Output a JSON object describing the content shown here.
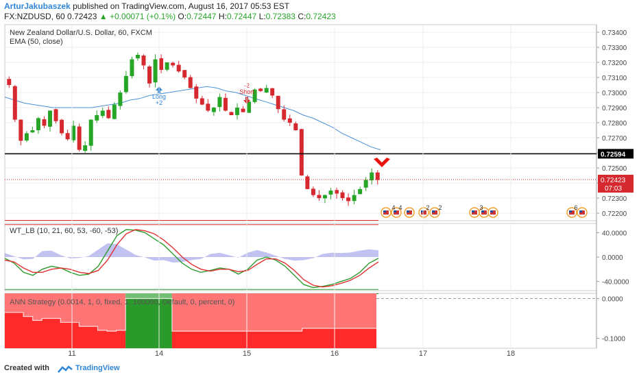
{
  "header": {
    "author": "ArturJakubaszek",
    "published_text": "published on TradingView.com, August 16, 2017 05:53 EST",
    "symbol": "FX:NZDUSD, 60",
    "last": "0.72423",
    "change": "+0.00071 (+0.1%)",
    "o_label": "O:",
    "o_value": "0.72447",
    "h_label": "H:",
    "h_value": "0.72447",
    "l_label": "L:",
    "l_value": "0.72383",
    "c_label": "C:",
    "c_value": "0.72423"
  },
  "main_pane": {
    "title": "New Zealand Dollar/U.S. Dollar, 60, FXCM",
    "indicator": "EMA (50, close)",
    "price_ticks": [
      "0.73400",
      "0.73300",
      "0.73200",
      "0.73100",
      "0.73000",
      "0.72900",
      "0.72800",
      "0.72700",
      "0.72600",
      "0.72500",
      "0.72400",
      "0.72300",
      "0.72200"
    ],
    "hline_label": "0.72594",
    "last_label": "0.72423",
    "timer_label": "07:03",
    "long_label": "Long",
    "long_qty": "+2",
    "short_label": "Short",
    "short_qty": "-2",
    "event_labels": [
      "4",
      "4",
      "2",
      "2",
      "3",
      "6"
    ]
  },
  "wt_pane": {
    "title": "WT_LB (10, 21, 60, 53, -60, -53)",
    "ticks": [
      "40.0000",
      "0.0000",
      "-40.0000"
    ]
  },
  "ann_pane": {
    "title": "ANN Strategy (0.0014, 1, 0, fixed, 1, 100000, Default, 0, percent, 0)",
    "ticks": [
      "0.0000",
      "-0.1000"
    ]
  },
  "time_axis": {
    "labels": [
      "11",
      "14",
      "15",
      "16",
      "17",
      "18"
    ]
  },
  "footer": {
    "created_with": "Created with",
    "brand": "TradingView"
  },
  "colors": {
    "up": "#27a527",
    "down": "#d6292f",
    "ema": "#4a90d9",
    "wt_green": "#2e9b2e",
    "wt_red": "#e03030",
    "hist": "#9a9ae8",
    "ann_red": "#ff2a2a",
    "ann_green": "#2a9b2a"
  },
  "chart_data": [
    {
      "type": "candlestick",
      "title": "New Zealand Dollar/U.S. Dollar, 60, FXCM",
      "x": [
        "11",
        "14",
        "15",
        "16",
        "17",
        "18"
      ],
      "ylim": [
        0.7215,
        0.7345
      ],
      "horizontal_line": 0.72594,
      "last_price": 0.72423,
      "close_path": [
        0.7305,
        0.7282,
        0.7268,
        0.7273,
        0.7275,
        0.7283,
        0.7278,
        0.7288,
        0.7281,
        0.7273,
        0.7269,
        0.7278,
        0.7262,
        0.7265,
        0.7282,
        0.7285,
        0.7288,
        0.7283,
        0.7292,
        0.73,
        0.7311,
        0.7322,
        0.7325,
        0.7318,
        0.7306,
        0.7322,
        0.7315,
        0.732,
        0.7318,
        0.7314,
        0.731,
        0.7303,
        0.7296,
        0.7292,
        0.7288,
        0.729,
        0.7297,
        0.7288,
        0.7285,
        0.729,
        0.7287,
        0.7294,
        0.7302,
        0.7301,
        0.7303,
        0.7298,
        0.7289,
        0.7282,
        0.728,
        0.7275,
        0.7245,
        0.7236,
        0.7232,
        0.723,
        0.7232,
        0.7235,
        0.7233,
        0.723,
        0.7228,
        0.7232,
        0.7236,
        0.7242,
        0.7247,
        0.7242
      ],
      "ema": [
        0.7297,
        0.7295,
        0.7293,
        0.7292,
        0.7291,
        0.729,
        0.729,
        0.729,
        0.729,
        0.729,
        0.7291,
        0.7292,
        0.7293,
        0.7295,
        0.7296,
        0.7298,
        0.7299,
        0.73,
        0.7301,
        0.7302,
        0.7303,
        0.7304,
        0.7303,
        0.7301,
        0.73,
        0.7298,
        0.7296,
        0.7294,
        0.7292,
        0.729,
        0.7288,
        0.7285,
        0.7283,
        0.728,
        0.7277,
        0.7273,
        0.727,
        0.7267,
        0.7264,
        0.7262
      ]
    },
    {
      "type": "line",
      "title": "WT_LB (10, 21, 60, 53, -60, -53)",
      "ylim": [
        -55,
        55
      ],
      "levels": [
        53,
        60,
        -53,
        -60
      ],
      "series": [
        {
          "values": [
            -2,
            -10,
            -25,
            -30,
            -20,
            -15,
            -18,
            -25,
            -30,
            -28,
            -15,
            10,
            35,
            45,
            44,
            40,
            30,
            20,
            5,
            -10,
            -20,
            -25,
            -22,
            -18,
            -20,
            -28,
            -20,
            -5,
            0,
            -5,
            -15,
            -30,
            -45,
            -50,
            -48,
            -45,
            -40,
            -35,
            -25,
            -10,
            -2
          ]
        },
        {
          "values": [
            -5,
            -8,
            -18,
            -25,
            -25,
            -20,
            -18,
            -20,
            -25,
            -27,
            -22,
            -5,
            20,
            38,
            45,
            43,
            38,
            28,
            15,
            0,
            -12,
            -20,
            -23,
            -20,
            -20,
            -24,
            -22,
            -12,
            -3,
            -3,
            -10,
            -22,
            -37,
            -46,
            -49,
            -47,
            -43,
            -38,
            -30,
            -18,
            -8
          ]
        }
      ]
    },
    {
      "type": "area",
      "title": "ANN Strategy (0.0014, 1, 0, fixed, 1, 100000, Default, 0, percent, 0)",
      "ylim": [
        -0.125,
        0.013
      ],
      "series": [
        {
          "values": [
            -0.035,
            -0.035,
            -0.045,
            -0.055,
            -0.05,
            -0.05,
            -0.06,
            -0.06,
            -0.07,
            -0.07,
            -0.08,
            -0.082,
            -0.08,
            0.0,
            0.0,
            0.0,
            0.0,
            0.0,
            -0.082,
            -0.082,
            -0.082,
            -0.082,
            -0.082,
            -0.082,
            -0.082,
            -0.082,
            -0.082,
            -0.082,
            -0.082,
            -0.082,
            -0.082,
            -0.082,
            -0.075,
            -0.075,
            -0.075,
            -0.075,
            -0.075,
            -0.075,
            -0.075,
            -0.075
          ]
        }
      ],
      "state_segments": [
        {
          "state": "red",
          "from": 0,
          "to": 13
        },
        {
          "state": "green",
          "from": 13,
          "to": 18
        },
        {
          "state": "red",
          "from": 18,
          "to": 40
        }
      ]
    }
  ]
}
